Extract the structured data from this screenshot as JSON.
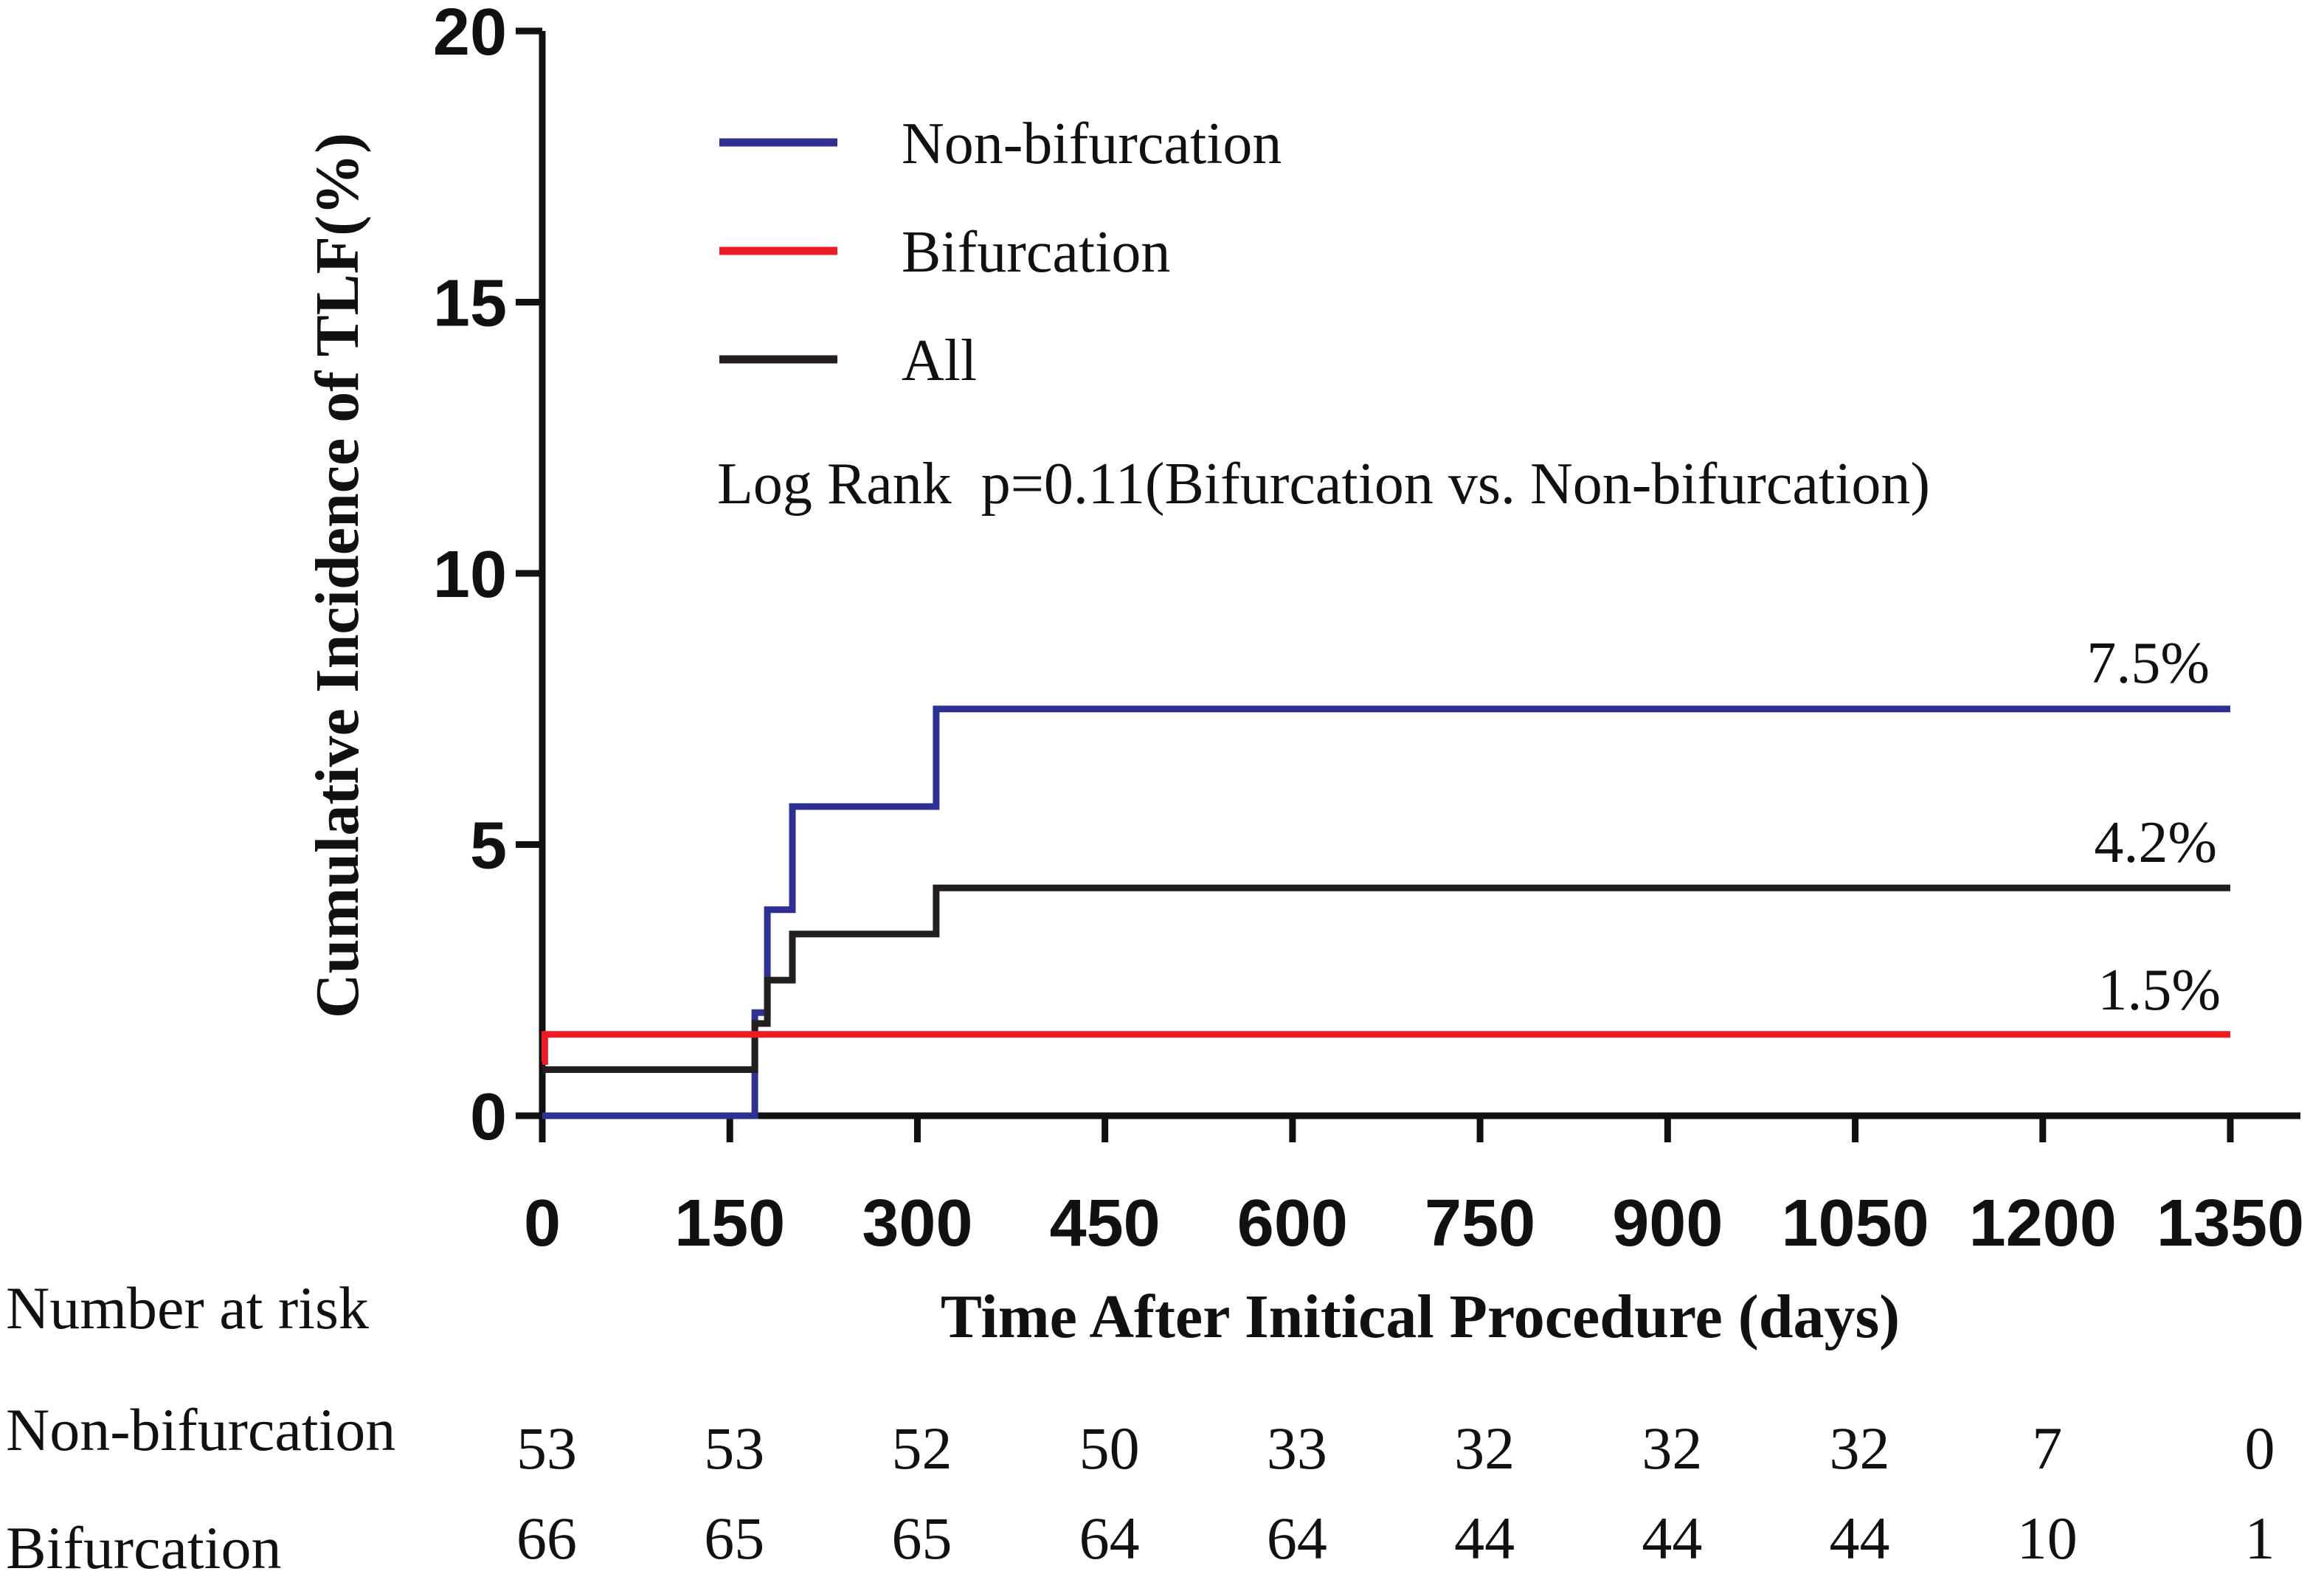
{
  "chart_data": {
    "type": "line",
    "step": true,
    "ylabel": "Cumulative Incidence of TLF(%)",
    "xlabel": "Time After Initical Procedure (days)",
    "xlim": [
      0,
      1350
    ],
    "ylim": [
      0,
      20
    ],
    "x_ticks": [
      "0",
      "150",
      "300",
      "450",
      "600",
      "750",
      "900",
      "1050",
      "1200",
      "1350"
    ],
    "y_ticks": [
      "0",
      "5",
      "10",
      "15",
      "20"
    ],
    "x_tick_values": [
      0,
      150,
      300,
      450,
      600,
      750,
      900,
      1050,
      1200,
      1350
    ],
    "y_tick_values": [
      0,
      5,
      10,
      15,
      20
    ],
    "legend_position": "top-left",
    "series": [
      {
        "name": "Non-bifurcation",
        "color": "#2e3192",
        "points": [
          [
            0,
            0
          ],
          [
            170,
            0
          ],
          [
            170,
            1.9
          ],
          [
            180,
            1.9
          ],
          [
            180,
            3.8
          ],
          [
            200,
            3.8
          ],
          [
            200,
            5.7
          ],
          [
            315,
            5.7
          ],
          [
            315,
            7.5
          ],
          [
            1350,
            7.5
          ]
        ],
        "end_label": "7.5%"
      },
      {
        "name": "Bifurcation",
        "color": "#ed1c24",
        "points": [
          [
            0,
            1.0
          ],
          [
            2,
            1.0
          ],
          [
            2,
            1.5
          ],
          [
            1350,
            1.5
          ]
        ],
        "end_label": "1.5%"
      },
      {
        "name": "All",
        "color": "#231f20",
        "points": [
          [
            0,
            0.85
          ],
          [
            170,
            0.85
          ],
          [
            170,
            1.7
          ],
          [
            180,
            1.7
          ],
          [
            180,
            2.5
          ],
          [
            200,
            2.5
          ],
          [
            200,
            3.35
          ],
          [
            315,
            3.35
          ],
          [
            315,
            4.2
          ],
          [
            1350,
            4.2
          ]
        ],
        "end_label": "4.2%"
      }
    ],
    "annotation": "Log Rank  p=0.11(Bifurcation vs. Non-bifurcation)",
    "risk_table": {
      "title": "Number at risk",
      "rows": [
        {
          "label": "Non-bifurcation",
          "values": [
            "53",
            "53",
            "52",
            "50",
            "33",
            "32",
            "32",
            "32",
            "7",
            "0"
          ]
        },
        {
          "label": "Bifurcation",
          "values": [
            "66",
            "65",
            "65",
            "64",
            "64",
            "44",
            "44",
            "44",
            "10",
            "1"
          ]
        }
      ]
    }
  }
}
